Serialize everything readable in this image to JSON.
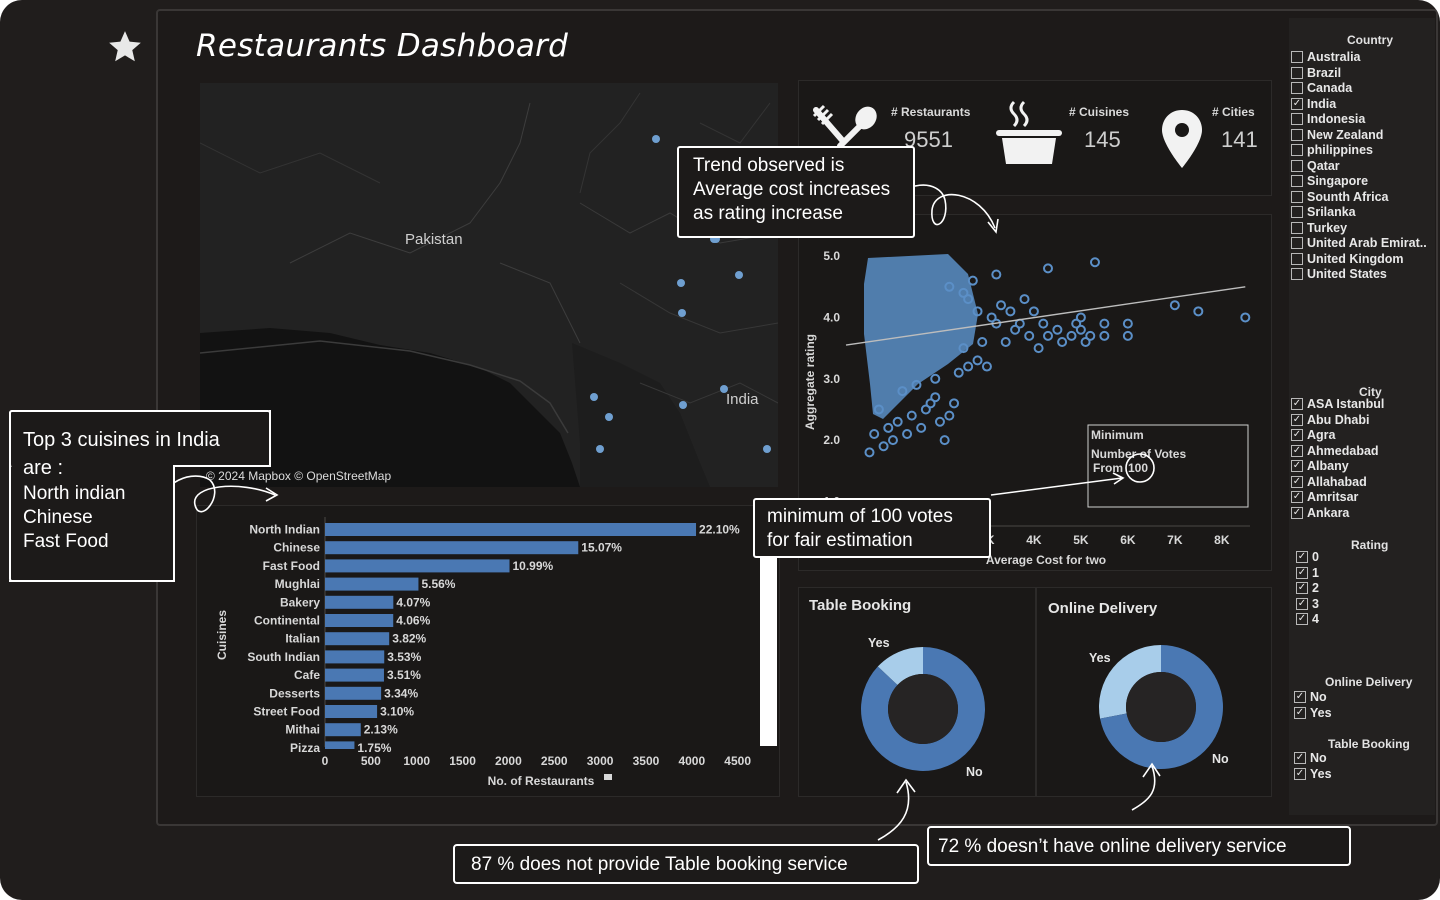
{
  "title": "Restaurants Dashboard",
  "icons": {
    "favorite": "star-icon",
    "restaurants": "fork-spoon-icon",
    "cuisines": "cooking-pot-icon",
    "cities": "location-pin-icon"
  },
  "colors": {
    "background": "#1d1a19",
    "bars": "#4a78b3",
    "points": "#5b8fc7",
    "donut_dark": "#4a78b3",
    "donut_light": "#a8cdea"
  },
  "map": {
    "labels": [
      "Pakistan",
      "India"
    ],
    "attribution": "© 2024 Mapbox © OpenStreetMap"
  },
  "kpis": [
    {
      "label": "# Restaurants",
      "value": "9551"
    },
    {
      "label": "# Cuisines",
      "value": "145"
    },
    {
      "label": "# Cities",
      "value": "141"
    }
  ],
  "filters": {
    "country": {
      "title": "Country",
      "items": [
        {
          "label": "Australia",
          "checked": false
        },
        {
          "label": "Brazil",
          "checked": false
        },
        {
          "label": "Canada",
          "checked": false
        },
        {
          "label": "India",
          "checked": true
        },
        {
          "label": "Indonesia",
          "checked": false
        },
        {
          "label": "New Zealand",
          "checked": false
        },
        {
          "label": "philippines",
          "checked": false
        },
        {
          "label": "Qatar",
          "checked": false
        },
        {
          "label": "Singapore",
          "checked": false
        },
        {
          "label": "Sounth Africa",
          "checked": false
        },
        {
          "label": "Srilanka",
          "checked": false
        },
        {
          "label": "Turkey",
          "checked": false
        },
        {
          "label": "United Arab Emirat..",
          "checked": false
        },
        {
          "label": "United Kingdom",
          "checked": false
        },
        {
          "label": "United States",
          "checked": false
        }
      ]
    },
    "city": {
      "title": "City",
      "items": [
        {
          "label": "ASA Istanbul",
          "checked": true
        },
        {
          "label": "Abu Dhabi",
          "checked": true
        },
        {
          "label": "Agra",
          "checked": true
        },
        {
          "label": "Ahmedabad",
          "checked": true
        },
        {
          "label": "Albany",
          "checked": true
        },
        {
          "label": "Allahabad",
          "checked": true
        },
        {
          "label": "Amritsar",
          "checked": true
        },
        {
          "label": "Ankara",
          "checked": true
        }
      ]
    },
    "rating": {
      "title": "Rating",
      "items": [
        {
          "label": "0",
          "checked": true
        },
        {
          "label": "1",
          "checked": true
        },
        {
          "label": "2",
          "checked": true
        },
        {
          "label": "3",
          "checked": true
        },
        {
          "label": "4",
          "checked": true
        }
      ]
    },
    "online_delivery": {
      "title": "Online Delivery",
      "items": [
        {
          "label": "No",
          "checked": true
        },
        {
          "label": "Yes",
          "checked": true
        }
      ]
    },
    "table_booking": {
      "title": "Table Booking",
      "items": [
        {
          "label": "No",
          "checked": true
        },
        {
          "label": "Yes",
          "checked": true
        }
      ]
    }
  },
  "scatter_annotation": {
    "line1": "Minimum",
    "line2": "Number of Votes",
    "line3": "From",
    "value": "100"
  },
  "donuts": [
    {
      "title": "Table Booking",
      "yes_label": "Yes",
      "no_label": "No"
    },
    {
      "title": "Online Delivery",
      "yes_label": "Yes",
      "no_label": "No"
    }
  ],
  "callouts": {
    "trend": [
      "Trend observed is",
      "Average cost increases",
      "as rating increase"
    ],
    "top3": [
      "Top 3 cuisines in India",
      "are :",
      "North indian",
      "Chinese",
      "Fast Food"
    ],
    "votes": [
      "minimum of 100 votes",
      "for fair estimation"
    ],
    "table_booking": "87 % does not provide Table booking service",
    "online_delivery": "72 % doesn’t have online delivery service"
  },
  "chart_data": [
    {
      "type": "bar",
      "orientation": "horizontal",
      "categories": [
        "North Indian",
        "Chinese",
        "Fast Food",
        "Mughlai",
        "Bakery",
        "Continental",
        "Italian",
        "South Indian",
        "Cafe",
        "Desserts",
        "Street Food",
        "Mithai",
        "Pizza"
      ],
      "values": [
        4046,
        2762,
        2012,
        1019,
        745,
        744,
        700,
        646,
        643,
        612,
        568,
        390,
        321
      ],
      "data_labels": [
        "22.10%",
        "15.07%",
        "10.99%",
        "5.56%",
        "4.07%",
        "4.06%",
        "3.82%",
        "3.53%",
        "3.51%",
        "3.34%",
        "3.10%",
        "2.13%",
        "1.75%"
      ],
      "xlabel": "No. of Restaurants",
      "ylabel": "Cuisines",
      "xticks": [
        "0",
        "500",
        "1000",
        "1500",
        "2000",
        "2500",
        "3000",
        "3500",
        "4000",
        "4500"
      ],
      "xlim": [
        0,
        4700
      ]
    },
    {
      "type": "scatter",
      "xlabel": "Average Cost for two",
      "ylabel": "Aggregate rating",
      "xticks": [
        "3K",
        "4K",
        "5K",
        "6K",
        "7K",
        "8K"
      ],
      "yticks": [
        "1.0",
        "2.0",
        "3.0",
        "4.0",
        "5.0"
      ],
      "xlim": [
        0,
        8600
      ],
      "ylim": [
        0.6,
        5.1
      ],
      "trendline": [
        [
          0,
          3.55
        ],
        [
          8500,
          4.5
        ]
      ],
      "points": [
        [
          3100,
          4.0
        ],
        [
          3200,
          3.9
        ],
        [
          3300,
          4.2
        ],
        [
          3400,
          3.6
        ],
        [
          3500,
          4.1
        ],
        [
          3600,
          3.8
        ],
        [
          3700,
          3.9
        ],
        [
          3800,
          4.3
        ],
        [
          3900,
          3.7
        ],
        [
          4000,
          4.1
        ],
        [
          4100,
          3.5
        ],
        [
          4200,
          3.9
        ],
        [
          4300,
          3.7
        ],
        [
          4500,
          3.8
        ],
        [
          4600,
          3.6
        ],
        [
          4800,
          3.7
        ],
        [
          4900,
          3.9
        ],
        [
          5000,
          3.8
        ],
        [
          5000,
          4.0
        ],
        [
          5100,
          3.6
        ],
        [
          5200,
          3.7
        ],
        [
          5500,
          3.9
        ],
        [
          5500,
          3.7
        ],
        [
          6000,
          3.9
        ],
        [
          6000,
          3.7
        ],
        [
          7000,
          4.2
        ],
        [
          7500,
          4.1
        ],
        [
          8500,
          4.0
        ],
        [
          4300,
          4.8
        ],
        [
          5300,
          4.9
        ],
        [
          3200,
          4.7
        ],
        [
          2700,
          4.6
        ],
        [
          2500,
          4.4
        ],
        [
          2200,
          4.5
        ],
        [
          2800,
          3.3
        ],
        [
          2600,
          3.2
        ],
        [
          2500,
          3.5
        ],
        [
          2300,
          2.6
        ],
        [
          2200,
          2.4
        ],
        [
          2100,
          2.0
        ],
        [
          2000,
          2.3
        ],
        [
          1900,
          2.7
        ],
        [
          1800,
          2.6
        ],
        [
          1700,
          2.5
        ],
        [
          1600,
          2.2
        ],
        [
          1500,
          2.9
        ],
        [
          1400,
          2.4
        ],
        [
          1300,
          2.1
        ],
        [
          1200,
          2.8
        ],
        [
          1100,
          2.3
        ],
        [
          1000,
          2.0
        ],
        [
          900,
          2.2
        ],
        [
          800,
          1.9
        ],
        [
          700,
          2.5
        ],
        [
          600,
          2.1
        ],
        [
          500,
          1.8
        ],
        [
          1900,
          3.0
        ],
        [
          2400,
          3.1
        ],
        [
          2900,
          3.6
        ],
        [
          3000,
          3.2
        ],
        [
          2800,
          4.1
        ],
        [
          2600,
          4.3
        ]
      ]
    },
    {
      "type": "pie",
      "title": "Table Booking",
      "slices": [
        {
          "label": "No",
          "value": 87
        },
        {
          "label": "Yes",
          "value": 13
        }
      ]
    },
    {
      "type": "pie",
      "title": "Online Delivery",
      "slices": [
        {
          "label": "No",
          "value": 72
        },
        {
          "label": "Yes",
          "value": 28
        }
      ]
    }
  ]
}
